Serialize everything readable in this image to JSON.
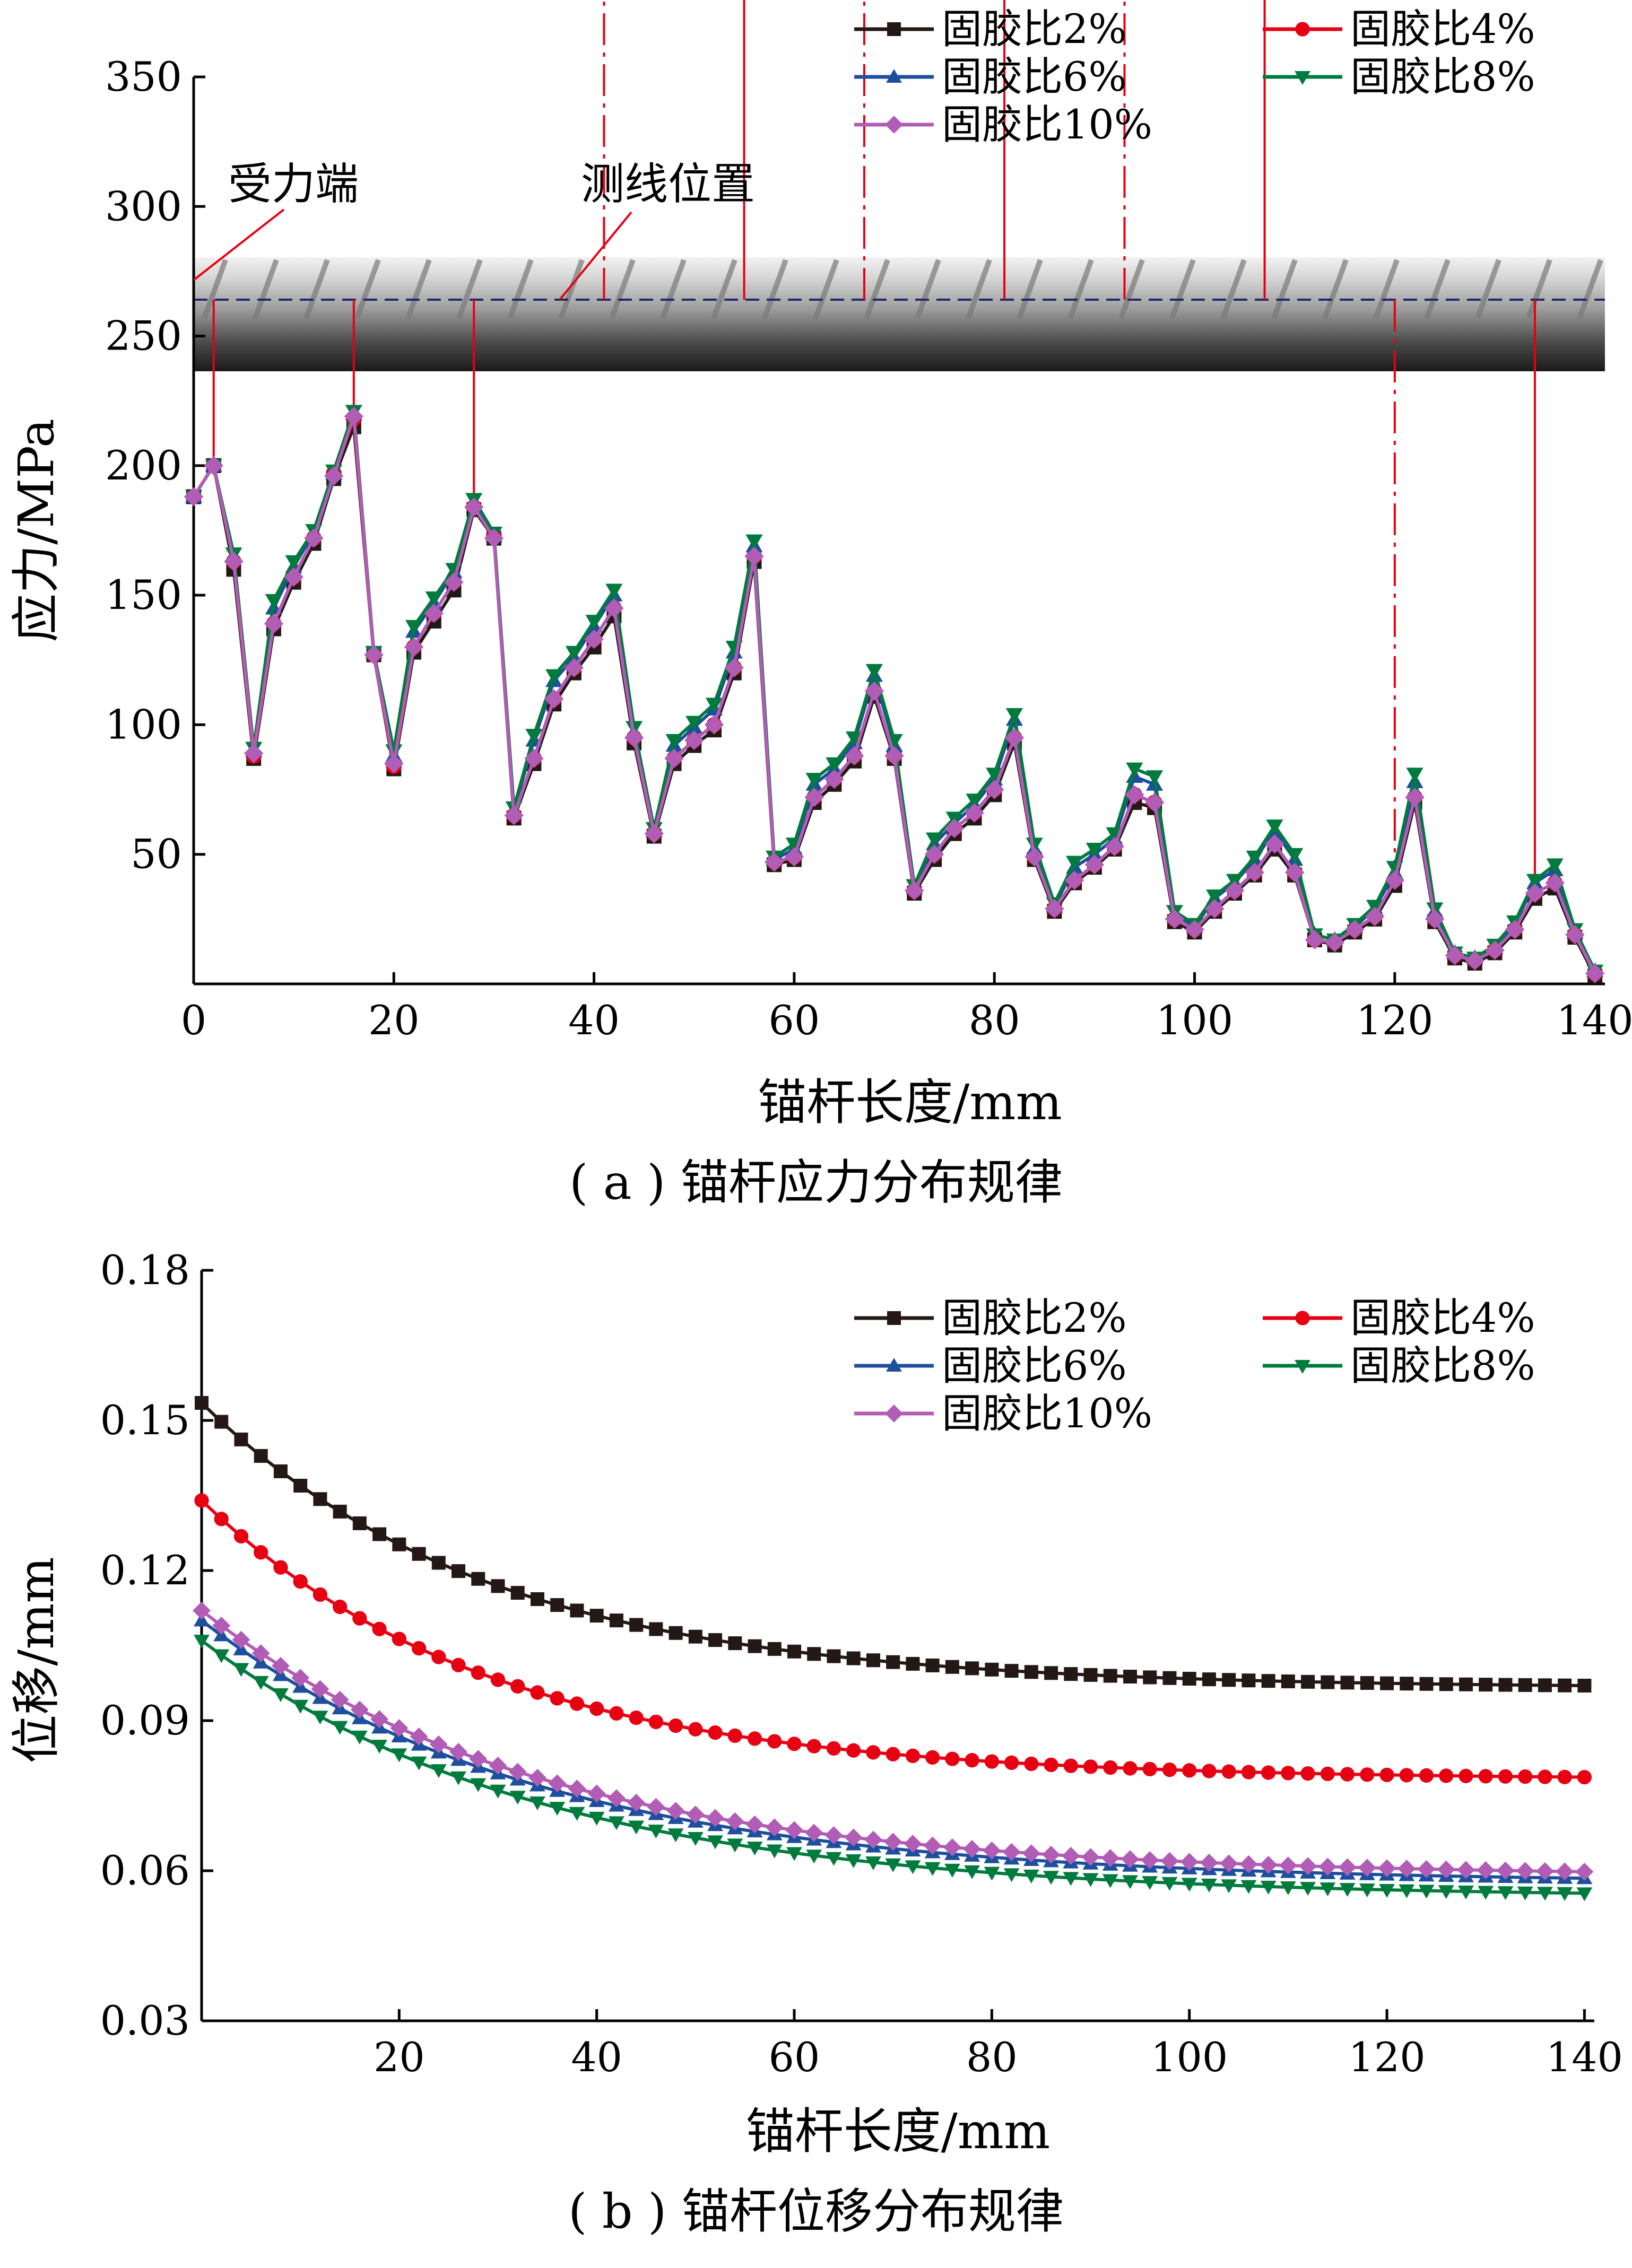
{
  "chart_data": [
    {
      "type": "line",
      "caption": "( a ) 锚杆应力分布规律",
      "xlabel": "锚杆长度/mm",
      "ylabel": "应力/MPa",
      "xlim": [
        0,
        141
      ],
      "ylim": [
        0,
        350
      ],
      "xticks": [
        "0",
        "20",
        "40",
        "60",
        "80",
        "100",
        "120",
        "140"
      ],
      "yticks": [
        "50",
        "100",
        "150",
        "200",
        "250",
        "300",
        "350"
      ],
      "legend_position": "top-right",
      "annotations": {
        "load_end": "受力端",
        "measure_line": "测线位置"
      },
      "measure_line_x": [
        2,
        16,
        28,
        41,
        55,
        67,
        81,
        93,
        107,
        120,
        134
      ],
      "x": [
        0,
        2,
        4,
        6,
        8,
        10,
        12,
        14,
        16,
        18,
        20,
        22,
        24,
        26,
        28,
        30,
        32,
        34,
        36,
        38,
        40,
        42,
        44,
        46,
        48,
        50,
        52,
        54,
        56,
        58,
        60,
        62,
        64,
        66,
        68,
        70,
        72,
        74,
        76,
        78,
        80,
        82,
        84,
        86,
        88,
        90,
        92,
        94,
        96,
        98,
        100,
        102,
        104,
        106,
        108,
        110,
        112,
        114,
        116,
        118,
        120,
        122,
        124,
        126,
        128,
        130,
        132,
        134,
        136,
        138,
        140
      ],
      "series": [
        {
          "name": "固胶比2%",
          "color": "#231815",
          "marker": "square",
          "values": [
            188,
            200,
            160,
            87,
            137,
            155,
            170,
            195,
            215,
            127,
            83,
            128,
            140,
            152,
            183,
            172,
            64,
            85,
            108,
            120,
            130,
            142,
            93,
            57,
            85,
            92,
            98,
            120,
            163,
            46,
            48,
            70,
            77,
            86,
            111,
            87,
            35,
            48,
            58,
            64,
            73,
            93,
            48,
            28,
            39,
            45,
            52,
            70,
            68,
            24,
            20,
            28,
            35,
            42,
            52,
            42,
            17,
            15,
            20,
            25,
            38,
            70,
            24,
            10,
            8,
            12,
            20,
            33,
            37,
            18,
            3
          ]
        },
        {
          "name": "固胶比4%",
          "color": "#e60012",
          "marker": "circle",
          "values": [
            188,
            200,
            163,
            88,
            139,
            157,
            172,
            197,
            218,
            127,
            84,
            130,
            143,
            155,
            184,
            173,
            65,
            87,
            110,
            122,
            133,
            145,
            95,
            58,
            87,
            94,
            100,
            122,
            165,
            47,
            49,
            72,
            79,
            88,
            113,
            88,
            36,
            50,
            60,
            66,
            75,
            95,
            49,
            29,
            40,
            46,
            53,
            73,
            70,
            25,
            21,
            29,
            36,
            43,
            54,
            43,
            17,
            16,
            21,
            26,
            40,
            72,
            25,
            11,
            9,
            13,
            21,
            35,
            39,
            19,
            4
          ]
        },
        {
          "name": "固胶比6%",
          "color": "#1d4f9f",
          "marker": "triangle-up",
          "values": [
            188,
            200,
            165,
            90,
            145,
            161,
            174,
            197,
            220,
            128,
            88,
            136,
            147,
            159,
            186,
            173,
            67,
            94,
            117,
            126,
            138,
            150,
            97,
            59,
            92,
            99,
            106,
            128,
            169,
            48,
            52,
            77,
            83,
            93,
            119,
            92,
            37,
            54,
            62,
            69,
            79,
            102,
            52,
            30,
            45,
            50,
            56,
            80,
            77,
            27,
            22,
            33,
            39,
            48,
            59,
            48,
            19,
            17,
            22,
            29,
            43,
            78,
            28,
            12,
            10,
            14,
            23,
            39,
            44,
            20,
            5
          ]
        },
        {
          "name": "固胶比8%",
          "color": "#007b3d",
          "marker": "triangle-down",
          "values": [
            188,
            200,
            166,
            91,
            148,
            163,
            175,
            198,
            221,
            128,
            90,
            138,
            149,
            160,
            187,
            174,
            68,
            96,
            119,
            128,
            140,
            152,
            99,
            60,
            94,
            101,
            108,
            130,
            171,
            49,
            54,
            79,
            85,
            95,
            121,
            94,
            38,
            56,
            64,
            71,
            81,
            104,
            54,
            31,
            47,
            52,
            58,
            83,
            80,
            28,
            23,
            34,
            40,
            49,
            61,
            50,
            19,
            17,
            23,
            30,
            45,
            81,
            29,
            12,
            10,
            15,
            24,
            40,
            46,
            21,
            5
          ]
        },
        {
          "name": "固胶比10%",
          "color": "#b15cb5",
          "marker": "diamond",
          "values": [
            188,
            200,
            163,
            89,
            139,
            157,
            172,
            196,
            219,
            127,
            85,
            130,
            143,
            155,
            184,
            172,
            65,
            87,
            110,
            122,
            133,
            145,
            95,
            58,
            87,
            94,
            100,
            122,
            165,
            47,
            49,
            72,
            79,
            88,
            113,
            88,
            36,
            50,
            60,
            66,
            75,
            95,
            49,
            29,
            40,
            46,
            53,
            73,
            70,
            25,
            21,
            29,
            36,
            43,
            54,
            43,
            17,
            16,
            21,
            26,
            40,
            72,
            25,
            11,
            9,
            13,
            21,
            35,
            39,
            19,
            4
          ]
        }
      ]
    },
    {
      "type": "line",
      "caption": "( b ) 锚杆位移分布规律",
      "xlabel": "锚杆长度/mm",
      "ylabel": "位移/mm",
      "xlim": [
        0,
        141
      ],
      "ylim": [
        0.03,
        0.18
      ],
      "xticks": [
        "20",
        "40",
        "60",
        "80",
        "100",
        "120",
        "140"
      ],
      "yticks": [
        "0.03",
        "0.06",
        "0.09",
        "0.12",
        "0.15",
        "0.18"
      ],
      "legend_position": "top-right",
      "series": [
        {
          "name": "固胶比2%",
          "color": "#231815",
          "marker": "square",
          "start": 0.1535,
          "end": 0.097,
          "k": 0.0343
        },
        {
          "name": "固胶比4%",
          "color": "#e60012",
          "marker": "circle",
          "start": 0.134,
          "end": 0.0787,
          "k": 0.0343
        },
        {
          "name": "固胶比6%",
          "color": "#1d4f9f",
          "marker": "triangle-up",
          "start": 0.11,
          "end": 0.0585,
          "k": 0.0292
        },
        {
          "name": "固胶比8%",
          "color": "#007b3d",
          "marker": "triangle-down",
          "start": 0.106,
          "end": 0.0555,
          "k": 0.0292
        },
        {
          "name": "固胶比10%",
          "color": "#b15cb5",
          "marker": "diamond",
          "start": 0.112,
          "end": 0.0598,
          "k": 0.0292
        }
      ]
    }
  ]
}
